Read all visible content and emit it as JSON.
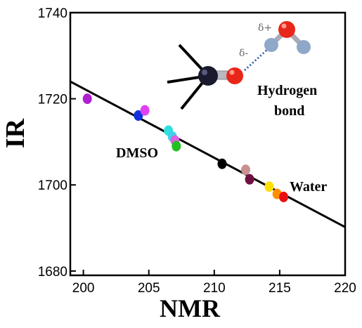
{
  "chart_data": {
    "type": "scatter",
    "xlabel": "NMR",
    "ylabel": "IR",
    "xlim": [
      199,
      220
    ],
    "ylim": [
      1679,
      1740
    ],
    "xticks": [
      200,
      205,
      210,
      215,
      220
    ],
    "yticks": [
      1680,
      1700,
      1720,
      1740
    ],
    "grid": false,
    "fit_line": {
      "x": [
        199,
        220
      ],
      "y": [
        1724,
        1690.2
      ]
    },
    "points": [
      {
        "x": 200.3,
        "y": 1720.0,
        "color": "#b020d0"
      },
      {
        "x": 204.2,
        "y": 1716.1,
        "color": "#1030e0"
      },
      {
        "x": 204.7,
        "y": 1717.3,
        "color": "#e040f0"
      },
      {
        "x": 206.5,
        "y": 1712.6,
        "color": "#30e0e0"
      },
      {
        "x": 206.8,
        "y": 1711.2,
        "color": "#40d0e8"
      },
      {
        "x": 207.0,
        "y": 1710.3,
        "color": "#e060e0"
      },
      {
        "x": 207.1,
        "y": 1709.0,
        "color": "#20c020"
      },
      {
        "x": 210.6,
        "y": 1704.9,
        "color": "#000000"
      },
      {
        "x": 212.4,
        "y": 1703.5,
        "color": "#c89090"
      },
      {
        "x": 212.7,
        "y": 1701.3,
        "color": "#701040"
      },
      {
        "x": 214.2,
        "y": 1699.6,
        "color": "#ffe000"
      },
      {
        "x": 214.8,
        "y": 1697.9,
        "color": "#ff9000"
      },
      {
        "x": 215.3,
        "y": 1697.2,
        "color": "#e81010"
      }
    ],
    "annotations": {
      "dmso": "DMSO",
      "water": "Water",
      "hb_line1": "Hydrogen",
      "hb_line2": "bond",
      "delta_minus": "δ-",
      "delta_plus": "δ+"
    },
    "colors": {
      "line": "#000000",
      "dmso_dark": "#1a1a2e",
      "oxygen_red": "#e8261a",
      "hydrogen_blue": "#8fa8c8",
      "hbond_dots": "#3a60b0"
    }
  }
}
